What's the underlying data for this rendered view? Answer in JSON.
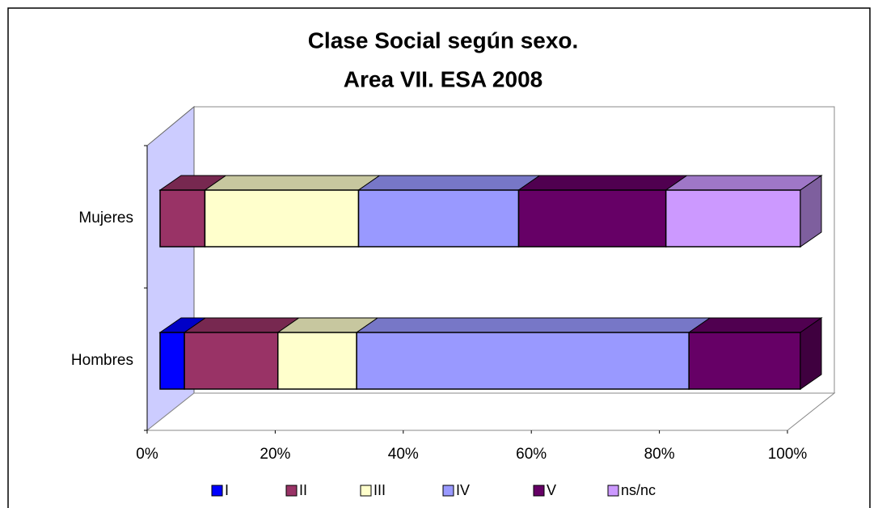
{
  "chart_data": {
    "type": "bar3d_stacked_horizontal",
    "title": [
      "Clase Social según sexo.",
      "Area VII. ESA 2008"
    ],
    "categories": [
      "Hombres",
      "Mujeres"
    ],
    "series": [
      {
        "name": "I",
        "color": "#0000ff",
        "values": [
          3.8,
          0
        ]
      },
      {
        "name": "II",
        "color": "#993366",
        "values": [
          14.6,
          7
        ]
      },
      {
        "name": "III",
        "color": "#ffffcc",
        "values": [
          12.3,
          24
        ]
      },
      {
        "name": "IV",
        "color": "#9999ff",
        "values": [
          51.9,
          25
        ]
      },
      {
        "name": "V",
        "color": "#660066",
        "values": [
          17.4,
          23
        ]
      },
      {
        "name": "ns/nc",
        "color": "#cc99ff",
        "values": [
          0,
          21
        ]
      }
    ],
    "xlim": [
      0,
      100
    ],
    "xticks": [
      {
        "value": 0,
        "label": "0%"
      },
      {
        "value": 20,
        "label": "20%"
      },
      {
        "value": 40,
        "label": "40%"
      },
      {
        "value": 60,
        "label": "60%"
      },
      {
        "value": 80,
        "label": "80%"
      },
      {
        "value": 100,
        "label": "100%"
      }
    ],
    "legend": "bottom"
  }
}
